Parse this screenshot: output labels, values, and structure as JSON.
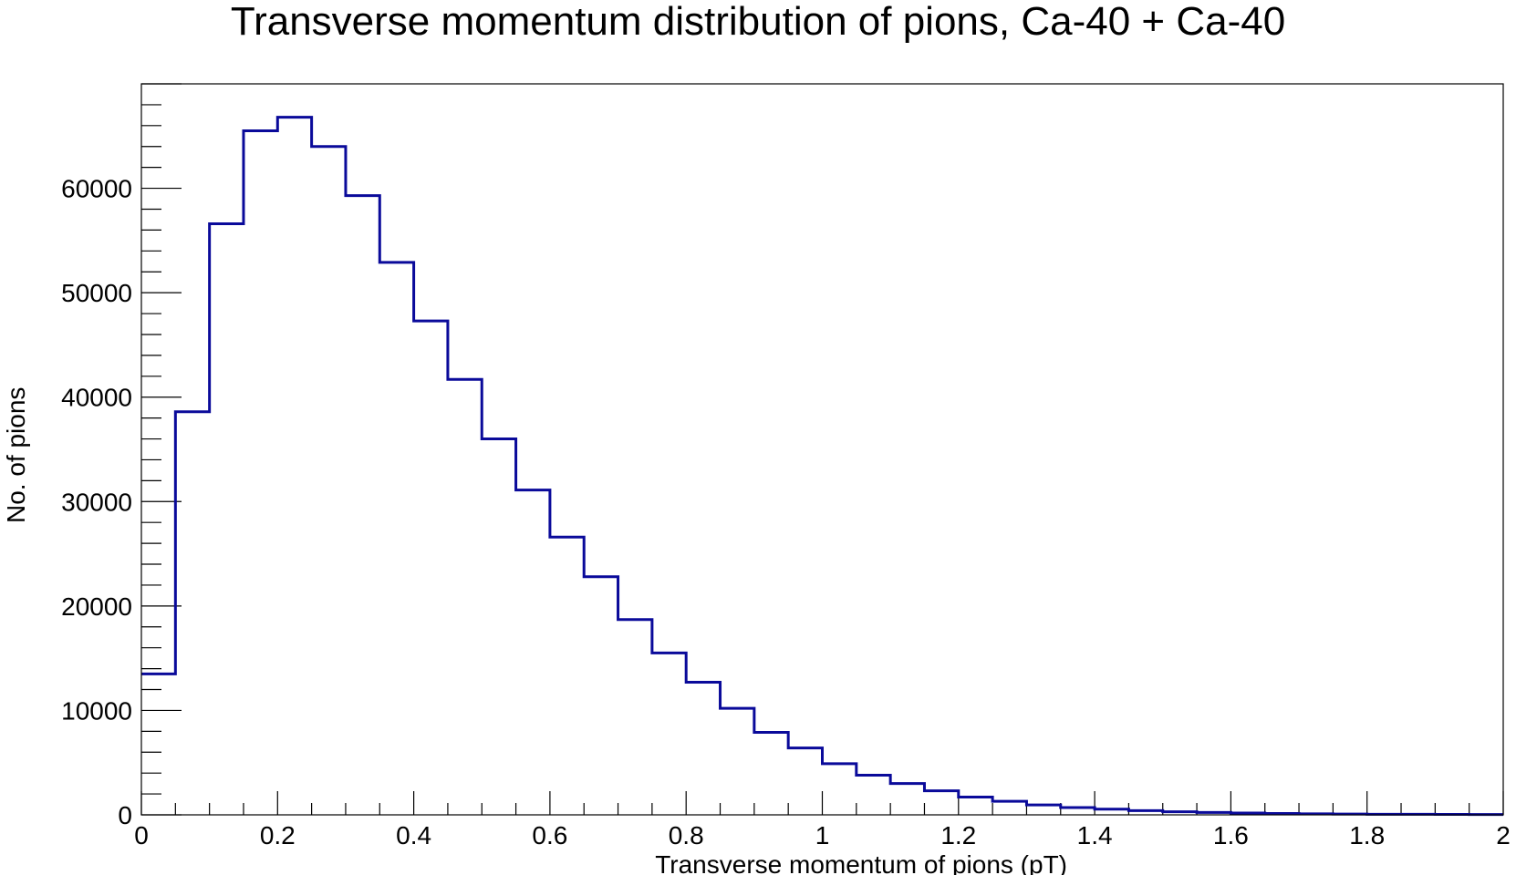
{
  "chart_data": {
    "type": "bar",
    "style": "step-histogram",
    "title": "Transverse momentum distribution of pions, Ca-40 + Ca-40",
    "xlabel": "Transverse momentum of pions (pT)",
    "ylabel": "No. of pions",
    "xlim": [
      0,
      2
    ],
    "ylim": [
      0,
      70000
    ],
    "bin_width": 0.05,
    "bin_edges_start": 0,
    "values": [
      13500,
      38600,
      56600,
      65500,
      66800,
      64000,
      59300,
      52900,
      47300,
      41700,
      36000,
      31100,
      26600,
      22800,
      18700,
      15500,
      12700,
      10200,
      7900,
      6400,
      4900,
      3800,
      3000,
      2300,
      1700,
      1300,
      950,
      700,
      550,
      400,
      300,
      230,
      170,
      130,
      100,
      80,
      60,
      50,
      40,
      30
    ],
    "x_major_ticks": [
      0,
      0.2,
      0.4,
      0.6,
      0.8,
      1,
      1.2,
      1.4,
      1.6,
      1.8,
      2
    ],
    "x_tick_labels": [
      "0",
      "0.2",
      "0.4",
      "0.6",
      "0.8",
      "1",
      "1.2",
      "1.4",
      "1.6",
      "1.8",
      "2"
    ],
    "y_major_ticks": [
      0,
      10000,
      20000,
      30000,
      40000,
      50000,
      60000
    ],
    "y_tick_labels": [
      "0",
      "10000",
      "20000",
      "30000",
      "40000",
      "50000",
      "60000"
    ],
    "line_color": "#0a0a9a",
    "grid": false,
    "legend": "none"
  }
}
